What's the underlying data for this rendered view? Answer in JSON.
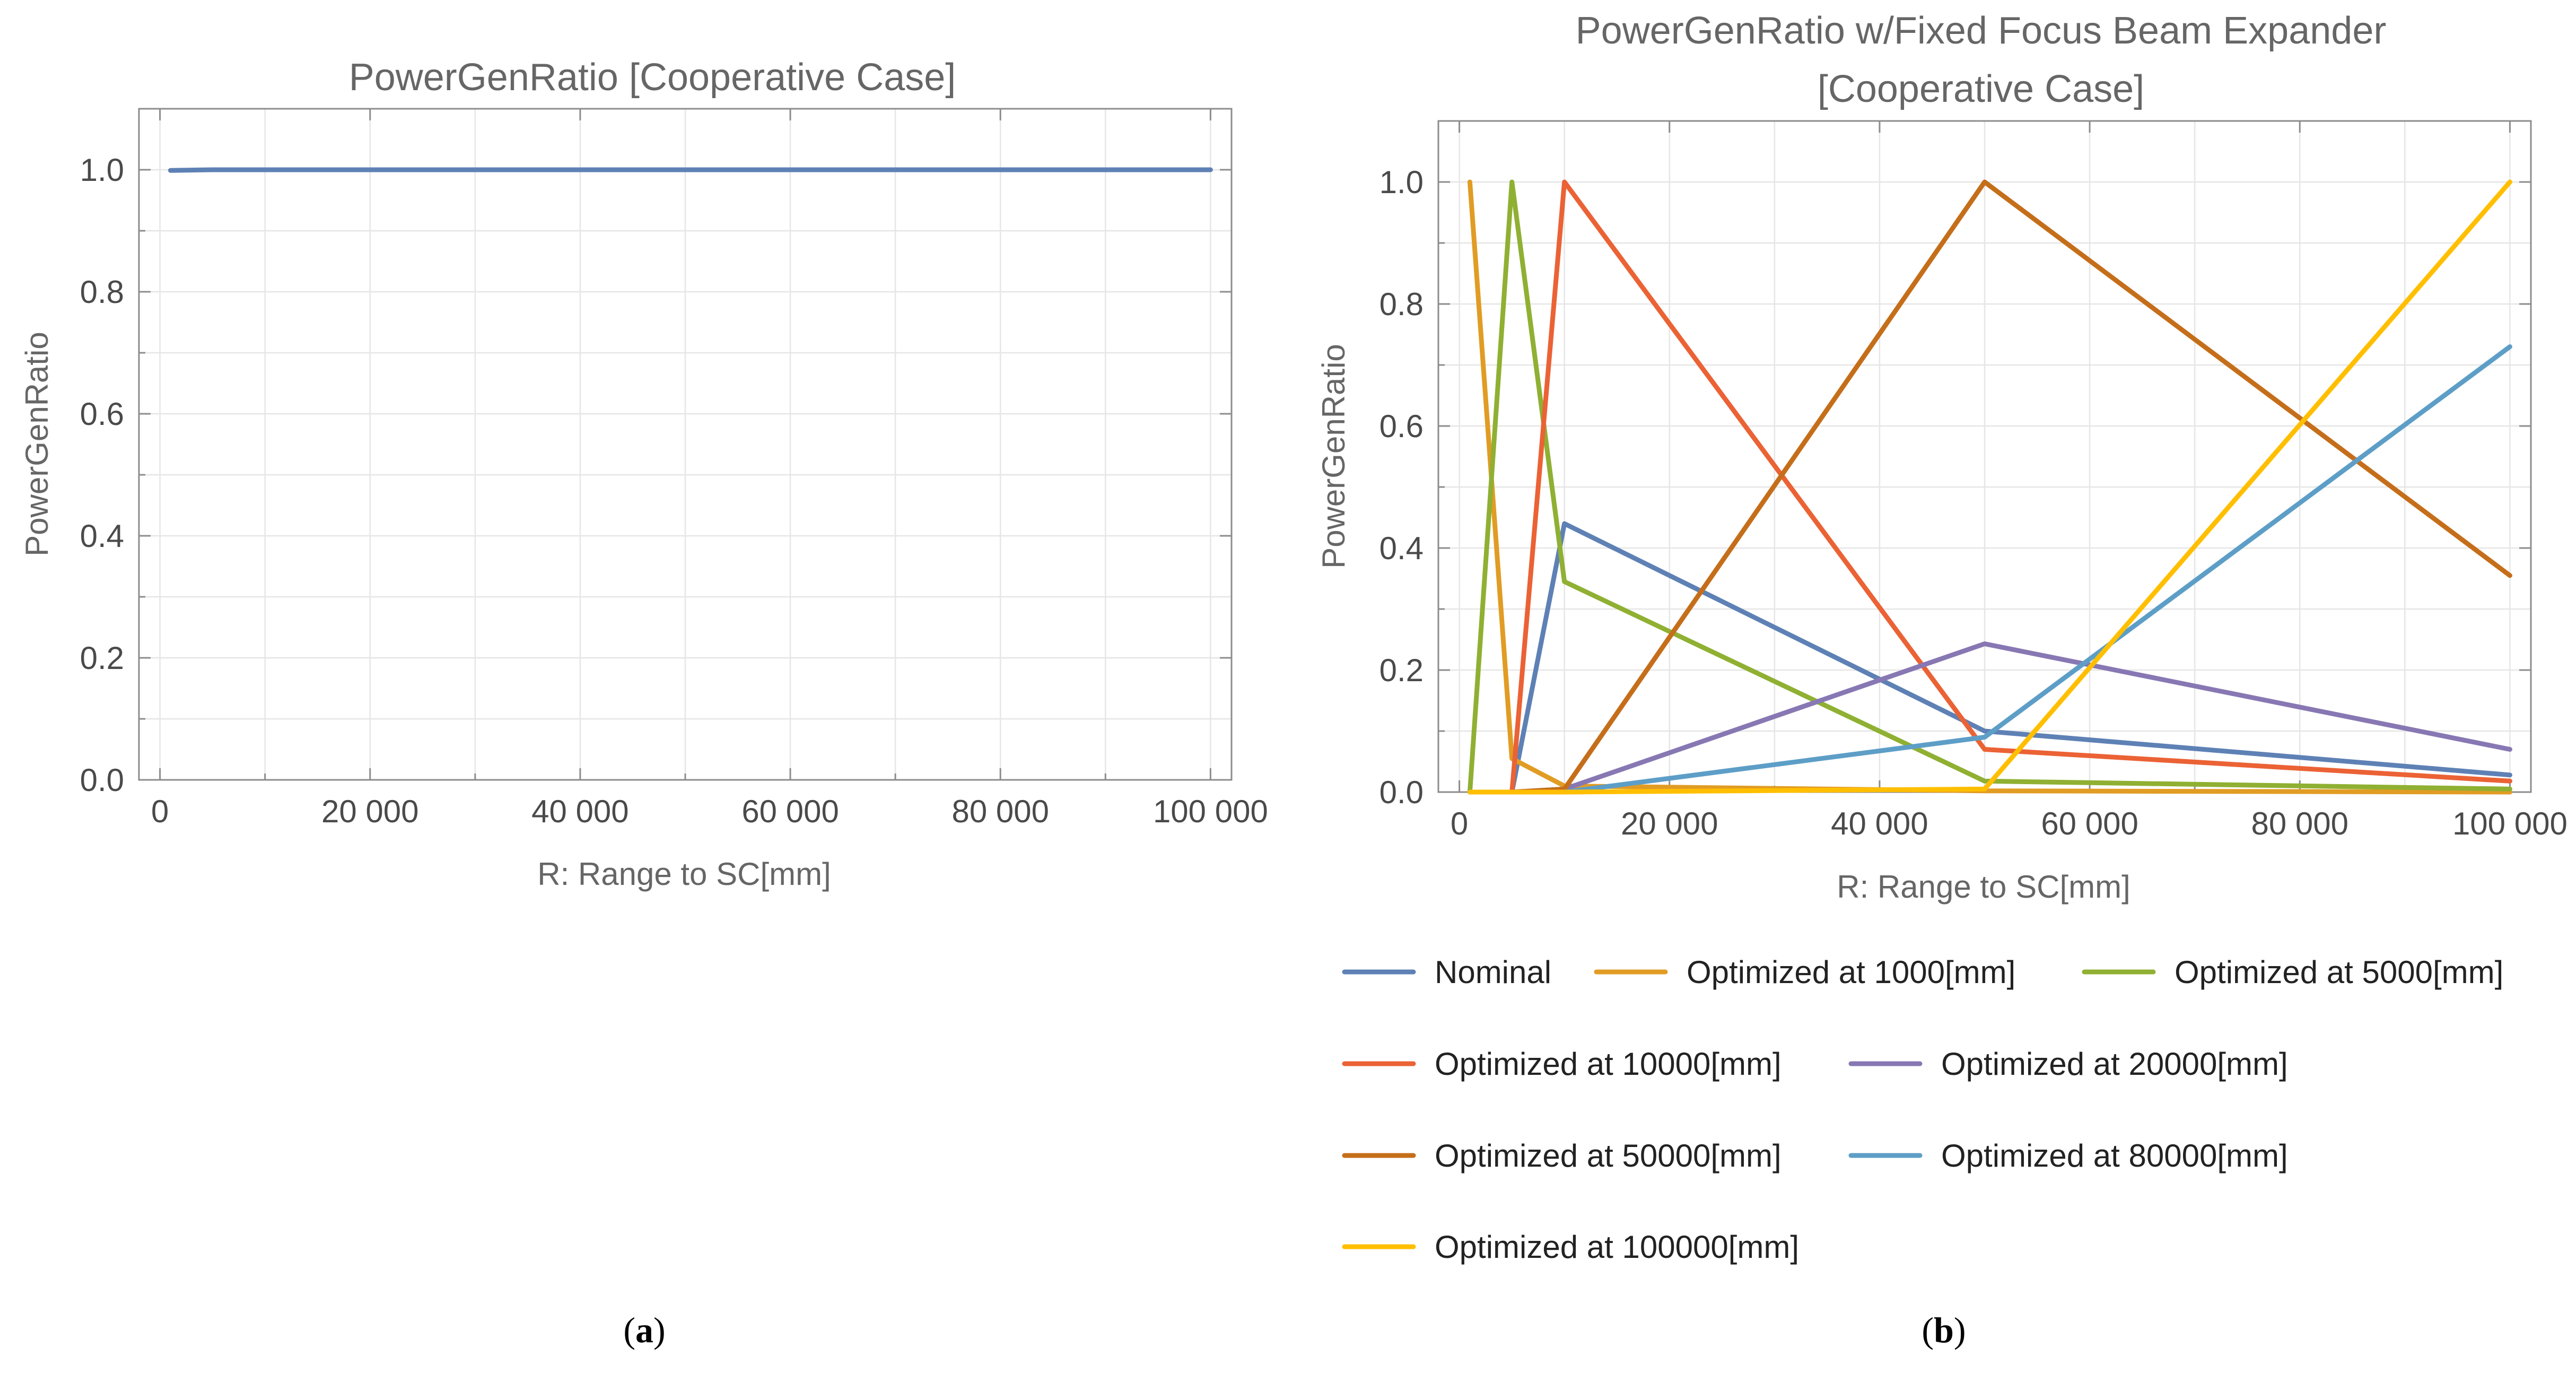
{
  "chart_data": [
    {
      "type": "line",
      "panel_label": "a",
      "title": "PowerGenRatio [Cooperative Case]",
      "xlabel": "R: Range to SC[mm]",
      "ylabel": "PowerGenRatio",
      "xlim": [
        -2000,
        102000
      ],
      "ylim": [
        0,
        1.1
      ],
      "xticks": [
        0,
        20000,
        40000,
        60000,
        80000,
        100000
      ],
      "xtick_labels": [
        "0",
        "20 000",
        "40 000",
        "60 000",
        "80 000",
        "100 000"
      ],
      "yticks": [
        0,
        0.2,
        0.4,
        0.6,
        0.8,
        1.0
      ],
      "ytick_labels": [
        "0.0",
        "0.2",
        "0.4",
        "0.6",
        "0.8",
        "1.0"
      ],
      "grid": true,
      "series": [
        {
          "name": "PowerGenRatio",
          "color": "#5e81b5",
          "x": [
            1000,
            5000,
            10000,
            20000,
            50000,
            80000,
            100000
          ],
          "values": [
            0.999,
            1.0,
            1.0,
            1.0,
            1.0,
            1.0,
            1.0
          ]
        }
      ]
    },
    {
      "type": "line",
      "panel_label": "b",
      "title": "PowerGenRatio w/Fixed Focus Beam Expander\n[Cooperative Case]",
      "title_lines": [
        "PowerGenRatio w/Fixed Focus Beam Expander",
        "[Cooperative Case]"
      ],
      "xlabel": "R: Range to SC[mm]",
      "ylabel": "PowerGenRatio",
      "xlim": [
        -2000,
        102000
      ],
      "ylim": [
        0,
        1.1
      ],
      "xticks": [
        0,
        20000,
        40000,
        60000,
        80000,
        100000
      ],
      "xtick_labels": [
        "0",
        "20 000",
        "40 000",
        "60 000",
        "80 000",
        "100 000"
      ],
      "yticks": [
        0,
        0.2,
        0.4,
        0.6,
        0.8,
        1.0
      ],
      "ytick_labels": [
        "0.0",
        "0.2",
        "0.4",
        "0.6",
        "0.8",
        "1.0"
      ],
      "grid": true,
      "legend_position": "bottom",
      "x": [
        1000,
        5000,
        10000,
        50000,
        100000
      ],
      "series": [
        {
          "name": "Nominal",
          "color": "#5e81b5",
          "values": [
            0.0,
            0.0,
            0.44,
            0.1,
            0.028
          ]
        },
        {
          "name": "Optimized at 1000[mm]",
          "color": "#e19c24",
          "values": [
            1.0,
            0.055,
            0.01,
            0.002,
            0.0
          ]
        },
        {
          "name": "Optimized at 5000[mm]",
          "color": "#8fb032",
          "values": [
            0.0,
            1.0,
            0.345,
            0.018,
            0.005
          ]
        },
        {
          "name": "Optimized at 10000[mm]",
          "color": "#eb6235",
          "values": [
            0.0,
            0.0,
            1.0,
            0.07,
            0.018
          ]
        },
        {
          "name": "Optimized at 20000[mm]",
          "color": "#8778b3",
          "values": [
            0.0,
            0.0,
            0.005,
            0.243,
            0.07
          ]
        },
        {
          "name": "Optimized at 50000[mm]",
          "color": "#c56e1a",
          "values": [
            0.0,
            0.0,
            0.005,
            1.0,
            0.355
          ]
        },
        {
          "name": "Optimized at 80000[mm]",
          "color": "#5d9ec7",
          "values": [
            0.0,
            0.0,
            0.0,
            0.09,
            0.73
          ]
        },
        {
          "name": "Optimized at 100000[mm]",
          "color": "#ffbf00",
          "values": [
            0.0,
            0.0,
            0.0,
            0.005,
            1.0
          ]
        }
      ]
    }
  ]
}
